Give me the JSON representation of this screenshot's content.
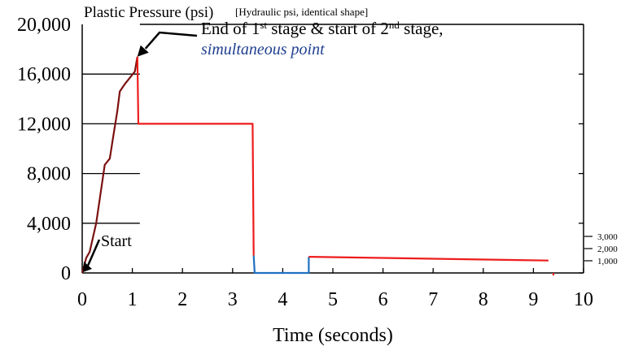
{
  "chart_data": {
    "type": "line",
    "title": "Plastic Pressure (psi)",
    "subtitle": "[Hydraulic psi, identical shape]",
    "xlabel": "Time (seconds)",
    "ylabel": "",
    "xlim": [
      0,
      10
    ],
    "ylim": [
      0,
      20000
    ],
    "x_ticks": [
      "0",
      "1",
      "2",
      "3",
      "4",
      "5",
      "6",
      "7",
      "8",
      "9",
      "10"
    ],
    "y_ticks": [
      "0",
      "4,000",
      "8,000",
      "12,000",
      "16,000",
      "20,000"
    ],
    "y_gridlines_partial": [
      4000,
      8000,
      12000,
      16000
    ],
    "right_axis_ticks": [
      "1,000",
      "2,000",
      "3,000"
    ],
    "right_axis_values": [
      1000,
      2000,
      3000
    ],
    "colors": {
      "stage1": "#7b1111",
      "pressure": "#ee1c1c",
      "low": "#1f6fc0",
      "axis": "#000000",
      "annotation_italic": "#1f3f8f"
    },
    "series": [
      {
        "color_key": "stage1",
        "x": [
          0,
          0.08,
          0.15,
          0.28,
          0.45,
          0.55,
          0.62,
          0.7,
          0.75,
          0.85,
          0.95,
          1.05,
          1.1
        ],
        "y": [
          0,
          1200,
          1700,
          4000,
          8700,
          9200,
          11000,
          13000,
          14600,
          15200,
          15700,
          16200,
          17400
        ]
      },
      {
        "color_key": "pressure",
        "x": [
          1.1,
          1.12,
          3.4,
          3.42
        ],
        "y": [
          17400,
          12000,
          12000,
          1400
        ]
      },
      {
        "color_key": "low",
        "x": [
          3.42,
          3.44,
          4.52,
          4.52
        ],
        "y": [
          1400,
          0,
          0,
          1300
        ]
      },
      {
        "color_key": "pressure",
        "x": [
          4.52,
          9.3
        ],
        "y": [
          1300,
          1000
        ]
      },
      {
        "color_key": "pressure",
        "x": [
          9.4,
          9.4
        ],
        "y": [
          0,
          -200
        ]
      }
    ],
    "annotations": [
      {
        "text_parts": [
          "End of 1",
          "st",
          " stage & start of 2",
          "nd",
          " stage,"
        ],
        "line2": "simultaneous point",
        "point": [
          1.1,
          17400
        ]
      },
      {
        "text": "Start",
        "point": [
          0,
          0
        ]
      }
    ]
  }
}
